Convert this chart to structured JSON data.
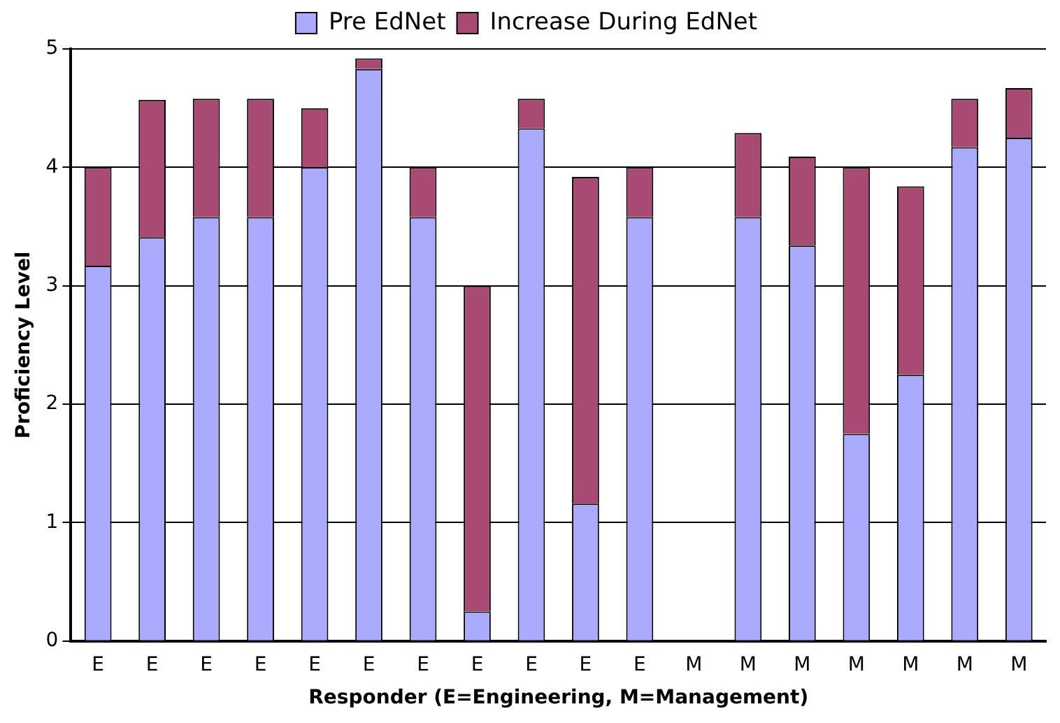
{
  "chart_data": {
    "type": "bar",
    "stacked": true,
    "xlabel": "Responder (E=Engineering, M=Management)",
    "ylabel": "Proficiency Level",
    "categories": [
      "E",
      "E",
      "E",
      "E",
      "E",
      "E",
      "E",
      "E",
      "E",
      "E",
      "E",
      "M",
      "M",
      "M",
      "M",
      "M",
      "M",
      "M"
    ],
    "series": [
      {
        "name": "Pre EdNet",
        "color": "#aaaaff",
        "values": [
          3.17,
          3.41,
          3.58,
          3.58,
          4.0,
          4.83,
          3.58,
          0.25,
          4.33,
          1.16,
          3.58,
          null,
          3.58,
          3.34,
          1.75,
          2.25,
          4.17,
          4.25
        ]
      },
      {
        "name": "Increase During EdNet",
        "color": "#a94a74",
        "values": [
          0.83,
          1.16,
          1.0,
          1.0,
          0.5,
          0.09,
          0.42,
          2.75,
          0.25,
          2.76,
          0.42,
          null,
          0.71,
          0.75,
          2.25,
          1.59,
          0.41,
          0.42
        ]
      }
    ],
    "ylim": [
      0,
      5
    ],
    "yticks": [
      0,
      1,
      2,
      3,
      4,
      5
    ],
    "grid": "y",
    "legend": "top"
  }
}
